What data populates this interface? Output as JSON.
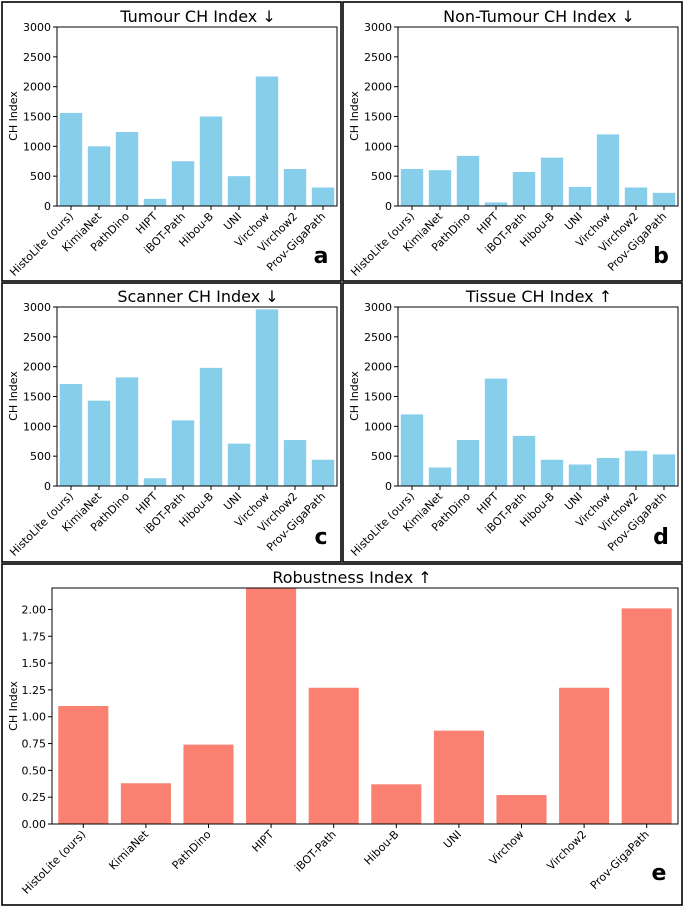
{
  "chart_data": [
    {
      "panel": "a",
      "type": "bar",
      "title": "Tumour CH Index ↓",
      "ylabel": "CH Index",
      "xlabel": "",
      "ylim": [
        0,
        3000
      ],
      "yticks": [
        "0",
        "500",
        "1000",
        "1500",
        "2000",
        "2500",
        "3000"
      ],
      "yticks_values": [
        0,
        500,
        1000,
        1500,
        2000,
        2500,
        3000
      ],
      "color": "#87CEEB",
      "categories": [
        "HistoLite (ours)",
        "KimiaNet",
        "PathDino",
        "HIPT",
        "iBOT-Path",
        "Hibou-B",
        "UNI",
        "Virchow",
        "Virchow2",
        "Prov-GigaPath"
      ],
      "values": [
        1560,
        1000,
        1240,
        120,
        750,
        1500,
        500,
        2170,
        620,
        310
      ]
    },
    {
      "panel": "b",
      "type": "bar",
      "title": "Non-Tumour CH Index ↓",
      "ylabel": "CH Index",
      "xlabel": "",
      "ylim": [
        0,
        3000
      ],
      "yticks": [
        "0",
        "500",
        "1000",
        "1500",
        "2000",
        "2500",
        "3000"
      ],
      "yticks_values": [
        0,
        500,
        1000,
        1500,
        2000,
        2500,
        3000
      ],
      "color": "#87CEEB",
      "categories": [
        "HistoLite (ours)",
        "KimiaNet",
        "PathDino",
        "HIPT",
        "iBOT-Path",
        "Hibou-B",
        "UNI",
        "Virchow",
        "Virchow2",
        "Prov-GigaPath"
      ],
      "values": [
        620,
        600,
        840,
        60,
        570,
        810,
        320,
        1200,
        310,
        220
      ]
    },
    {
      "panel": "c",
      "type": "bar",
      "title": "Scanner CH Index ↓",
      "ylabel": "CH Index",
      "xlabel": "",
      "ylim": [
        0,
        3000
      ],
      "yticks": [
        "0",
        "500",
        "1000",
        "1500",
        "2000",
        "2500",
        "3000"
      ],
      "yticks_values": [
        0,
        500,
        1000,
        1500,
        2000,
        2500,
        3000
      ],
      "color": "#87CEEB",
      "categories": [
        "HistoLite (ours)",
        "KimiaNet",
        "PathDino",
        "HIPT",
        "iBOT-Path",
        "Hibou-B",
        "UNI",
        "Virchow",
        "Virchow2",
        "Prov-GigaPath"
      ],
      "values": [
        1710,
        1430,
        1820,
        130,
        1100,
        1980,
        710,
        2960,
        770,
        440
      ]
    },
    {
      "panel": "d",
      "type": "bar",
      "title": "Tissue CH Index ↑",
      "ylabel": "CH Index",
      "xlabel": "",
      "ylim": [
        0,
        3000
      ],
      "yticks": [
        "0",
        "500",
        "1000",
        "1500",
        "2000",
        "2500",
        "3000"
      ],
      "yticks_values": [
        0,
        500,
        1000,
        1500,
        2000,
        2500,
        3000
      ],
      "color": "#87CEEB",
      "categories": [
        "HistoLite (ours)",
        "KimiaNet",
        "PathDino",
        "HIPT",
        "iBOT-Path",
        "Hibou-B",
        "UNI",
        "Virchow",
        "Virchow2",
        "Prov-GigaPath"
      ],
      "values": [
        1200,
        310,
        770,
        1800,
        840,
        440,
        360,
        470,
        590,
        530
      ]
    },
    {
      "panel": "e",
      "type": "bar",
      "title": "Robustness Index ↑",
      "ylabel": "CH Index",
      "xlabel": "",
      "ylim": [
        0,
        2.2
      ],
      "yticks": [
        "0.00",
        "0.25",
        "0.50",
        "0.75",
        "1.00",
        "1.25",
        "1.50",
        "1.75",
        "2.00"
      ],
      "yticks_values": [
        0,
        0.25,
        0.5,
        0.75,
        1.0,
        1.25,
        1.5,
        1.75,
        2.0
      ],
      "color": "#FA8072",
      "categories": [
        "HistoLite (ours)",
        "KimiaNet",
        "PathDino",
        "HIPT",
        "iBOT-Path",
        "Hibou-B",
        "UNI",
        "Virchow",
        "Virchow2",
        "Prov-GigaPath"
      ],
      "values": [
        1.1,
        0.38,
        0.74,
        2.2,
        1.27,
        0.37,
        0.87,
        0.27,
        1.27,
        2.01
      ]
    }
  ]
}
